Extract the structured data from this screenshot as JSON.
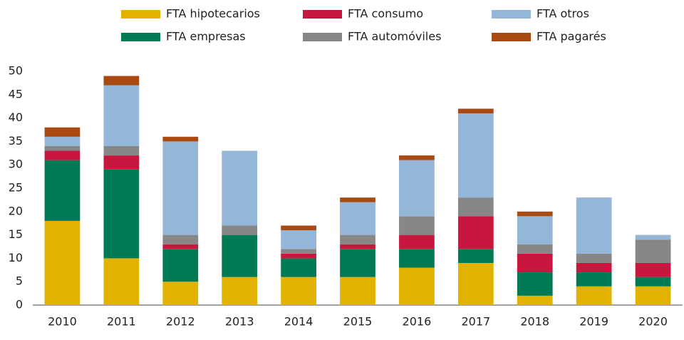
{
  "chart_data": {
    "type": "stacked_bar",
    "categories": [
      "2010",
      "2011",
      "2012",
      "2013",
      "2014",
      "2015",
      "2016",
      "2017",
      "2018",
      "2019",
      "2020"
    ],
    "series": [
      {
        "name": "FTA hipotecarios",
        "color": "#e2b200",
        "values": [
          18,
          10,
          5,
          6,
          6,
          6,
          8,
          9,
          2,
          4,
          4
        ]
      },
      {
        "name": "FTA empresas",
        "color": "#007a54",
        "values": [
          13,
          19,
          7,
          9,
          4,
          6,
          4,
          3,
          5,
          3,
          2
        ]
      },
      {
        "name": "FTA consumo",
        "color": "#c8173f",
        "values": [
          2,
          3,
          1,
          0,
          1,
          1,
          3,
          7,
          4,
          2,
          3
        ]
      },
      {
        "name": "FTA automóviles",
        "color": "#878787",
        "values": [
          1,
          2,
          2,
          2,
          1,
          2,
          4,
          4,
          2,
          2,
          5
        ]
      },
      {
        "name": "FTA otros",
        "color": "#93b6d9",
        "values": [
          2,
          13,
          20,
          16,
          4,
          7,
          12,
          18,
          6,
          12,
          1
        ]
      },
      {
        "name": "FTA pagarés",
        "color": "#a94a12",
        "values": [
          2,
          2,
          1,
          0,
          1,
          1,
          1,
          1,
          1,
          0,
          0
        ]
      }
    ],
    "ylim": [
      0,
      50
    ],
    "yticks": [
      0,
      5,
      10,
      15,
      20,
      25,
      30,
      35,
      40,
      45,
      50
    ],
    "grid": false
  }
}
